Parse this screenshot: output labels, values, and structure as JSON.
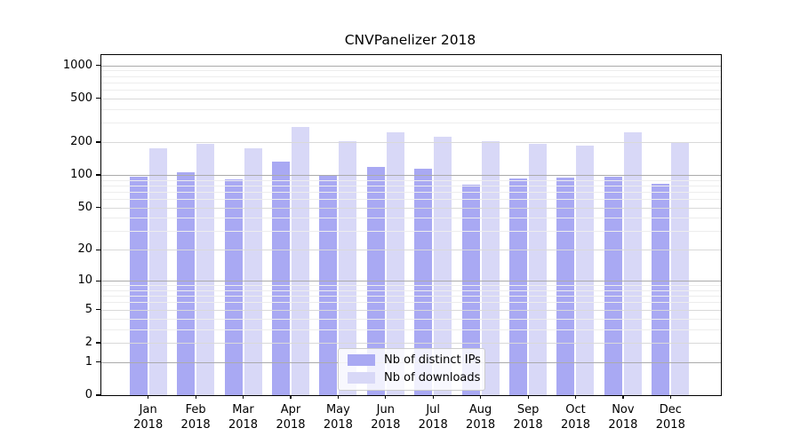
{
  "chart_data": {
    "type": "bar",
    "title": "CNVPanelizer 2018",
    "categories": [
      "Jan",
      "Feb",
      "Mar",
      "Apr",
      "May",
      "Jun",
      "Jul",
      "Aug",
      "Sep",
      "Oct",
      "Nov",
      "Dec"
    ],
    "x_year": "2018",
    "series": [
      {
        "name": "Nb of distinct IPs",
        "color": "#a9a9f3",
        "values": [
          96,
          106,
          91,
          133,
          98,
          119,
          114,
          81,
          93,
          94,
          96,
          83
        ]
      },
      {
        "name": "Nb of downloads",
        "color": "#d8d8f7",
        "values": [
          176,
          193,
          176,
          275,
          204,
          246,
          222,
          204,
          193,
          186,
          246,
          197
        ]
      }
    ],
    "yscale": "log1p",
    "ylim": [
      0,
      1240
    ],
    "y_ticks": [
      0,
      1,
      2,
      5,
      10,
      20,
      50,
      100,
      200,
      500,
      1000
    ],
    "y_minor_ticks": [
      3,
      4,
      6,
      7,
      8,
      9,
      30,
      40,
      60,
      70,
      80,
      90,
      300,
      400,
      600,
      700,
      800,
      900
    ],
    "grid": {
      "power10_line_color": "#ababab",
      "major_line_color": "#d9d9d9",
      "minor_line_color": "#ededed",
      "power10_lines": [
        1,
        10,
        100,
        1000
      ]
    },
    "axis_color": "#000000",
    "legend_position": "bottom-center",
    "legend_border_color": "#cccccc"
  }
}
